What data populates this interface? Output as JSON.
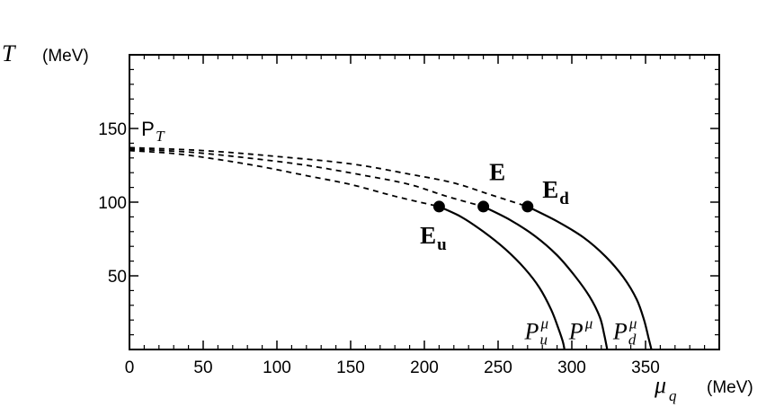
{
  "chart_data": {
    "type": "line",
    "xlabel": "μ",
    "xlabel_sub": "q",
    "xunit": "(MeV)",
    "ylabel": "T",
    "yunit": "(MeV)",
    "xlim": [
      0,
      400
    ],
    "ylim": [
      0,
      200
    ],
    "x_ticks": [
      0,
      50,
      100,
      150,
      200,
      250,
      300,
      350
    ],
    "y_ticks": [
      50,
      100,
      150
    ],
    "grid": false,
    "series": [
      {
        "style": "solid",
        "values": [
          [
            210,
            97
          ],
          [
            225,
            90
          ],
          [
            240,
            80
          ],
          [
            255,
            68
          ],
          [
            268,
            55
          ],
          [
            278,
            42
          ],
          [
            286,
            27
          ],
          [
            291,
            14
          ],
          [
            294,
            5
          ],
          [
            295,
            0
          ]
        ]
      },
      {
        "style": "solid",
        "values": [
          [
            240,
            97
          ],
          [
            258,
            88
          ],
          [
            275,
            77
          ],
          [
            290,
            64
          ],
          [
            302,
            50
          ],
          [
            312,
            36
          ],
          [
            319,
            22
          ],
          [
            322,
            10
          ],
          [
            324,
            0
          ]
        ]
      },
      {
        "style": "solid",
        "values": [
          [
            270,
            97
          ],
          [
            290,
            87
          ],
          [
            308,
            76
          ],
          [
            323,
            63
          ],
          [
            335,
            49
          ],
          [
            344,
            34
          ],
          [
            349,
            20
          ],
          [
            352,
            8
          ],
          [
            354,
            0
          ]
        ]
      },
      {
        "style": "dashed",
        "values": [
          [
            0,
            135
          ],
          [
            30,
            133
          ],
          [
            60,
            129
          ],
          [
            90,
            124
          ],
          [
            120,
            118
          ],
          [
            150,
            112
          ],
          [
            180,
            104
          ],
          [
            210,
            97
          ]
        ]
      },
      {
        "style": "dashed",
        "values": [
          [
            0,
            136
          ],
          [
            40,
            134
          ],
          [
            80,
            130
          ],
          [
            120,
            125
          ],
          [
            160,
            118
          ],
          [
            190,
            112
          ],
          [
            215,
            104
          ],
          [
            240,
            97
          ]
        ]
      },
      {
        "style": "dashed",
        "values": [
          [
            0,
            137
          ],
          [
            50,
            135
          ],
          [
            100,
            131
          ],
          [
            150,
            126
          ],
          [
            190,
            119
          ],
          [
            220,
            113
          ],
          [
            245,
            105
          ],
          [
            270,
            97
          ]
        ]
      }
    ],
    "points": [
      {
        "x": 210,
        "y": 97
      },
      {
        "x": 240,
        "y": 97
      },
      {
        "x": 270,
        "y": 97
      }
    ],
    "annotations": [
      {
        "text": "P",
        "sub": "T",
        "x": 8,
        "y": 145,
        "kind": "pt"
      },
      {
        "text": "E",
        "x": 244,
        "y": 115,
        "kind": "bold"
      },
      {
        "text": "E",
        "sub": "d",
        "x": 280,
        "y": 103,
        "kind": "bold"
      },
      {
        "text": "E",
        "sub": "u",
        "x": 197,
        "y": 72,
        "kind": "bold"
      },
      {
        "text": "P",
        "sub": "u",
        "sup": "μ",
        "x": 268,
        "y": 7,
        "kind": "italic"
      },
      {
        "text": "P",
        "sup": "μ",
        "x": 298,
        "y": 7,
        "kind": "italic"
      },
      {
        "text": "P",
        "sub": "d",
        "sup": "μ",
        "x": 328,
        "y": 7,
        "kind": "italic"
      }
    ]
  }
}
